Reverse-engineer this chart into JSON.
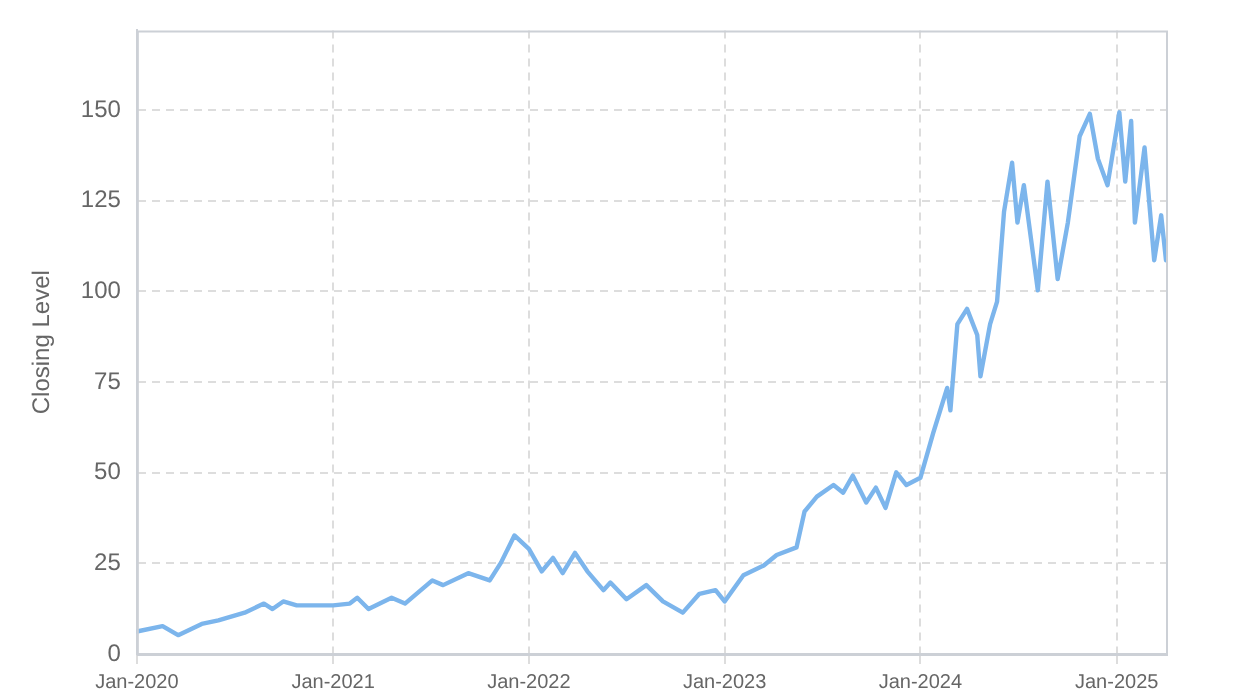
{
  "chart_data": {
    "type": "line",
    "ylabel": "Closing Level",
    "x": [
      "2020-01-01",
      "2020-02-18",
      "2020-03-18",
      "2020-05-01",
      "2020-06-01",
      "2020-07-20",
      "2020-08-25",
      "2020-09-10",
      "2020-09-30",
      "2020-10-25",
      "2021-01-01",
      "2021-02-01",
      "2021-02-15",
      "2021-03-08",
      "2021-04-20",
      "2021-05-15",
      "2021-07-05",
      "2021-07-25",
      "2021-09-10",
      "2021-10-20",
      "2021-11-10",
      "2021-12-05",
      "2022-01-01",
      "2022-01-25",
      "2022-02-15",
      "2022-03-05",
      "2022-03-28",
      "2022-04-20",
      "2022-05-20",
      "2022-06-02",
      "2022-07-02",
      "2022-08-08",
      "2022-09-08",
      "2022-10-15",
      "2022-11-15",
      "2022-12-15",
      "2023-01-01",
      "2023-02-05",
      "2023-03-15",
      "2023-04-08",
      "2023-05-15",
      "2023-05-30",
      "2023-06-22",
      "2023-07-23",
      "2023-08-10",
      "2023-08-28",
      "2023-09-22",
      "2023-10-10",
      "2023-10-28",
      "2023-11-17",
      "2023-12-06",
      "2024-01-01",
      "2024-01-25",
      "2024-02-20",
      "2024-02-26",
      "2024-03-10",
      "2024-03-28",
      "2024-04-16",
      "2024-04-22",
      "2024-05-10",
      "2024-05-23",
      "2024-06-05",
      "2024-06-20",
      "2024-06-30",
      "2024-07-12",
      "2024-08-07",
      "2024-08-25",
      "2024-09-13",
      "2024-10-02",
      "2024-10-24",
      "2024-11-12",
      "2024-11-27",
      "2024-12-15",
      "2025-01-06",
      "2025-01-17",
      "2025-01-28",
      "2025-02-04",
      "2025-02-22",
      "2025-03-12",
      "2025-03-25",
      "2025-04-03"
    ],
    "series": [
      {
        "color": "#7cb5ec",
        "values": [
          6.2,
          7.7,
          5.2,
          8.3,
          9.3,
          11.4,
          13.9,
          12.4,
          14.5,
          13.4,
          13.4,
          13.9,
          15.5,
          12.4,
          15.5,
          13.9,
          20.3,
          19,
          22.3,
          20.3,
          25.2,
          32.7,
          29,
          22.8,
          26.5,
          22.3,
          27.9,
          22.8,
          17.6,
          19.7,
          15.1,
          19,
          14.5,
          11.4,
          16.6,
          17.6,
          14.5,
          21.7,
          24.4,
          27.3,
          29.4,
          39.3,
          43.4,
          46.6,
          44.5,
          49.2,
          41.8,
          45.9,
          40.3,
          50.1,
          46.6,
          48.6,
          61,
          73.4,
          67.2,
          91,
          95.2,
          88,
          76.6,
          91,
          97.2,
          122,
          135.5,
          119,
          129.3,
          100.3,
          130.3,
          103.4,
          119,
          142.8,
          149,
          136.6,
          129.3,
          149.4,
          130.3,
          147,
          119,
          139.7,
          108.6,
          121,
          108.6
        ]
      }
    ],
    "xlim": [
      "2020-01-01",
      "2025-04-03"
    ],
    "xticks": [
      {
        "value": "2020-01-01",
        "label": "Jan-2020"
      },
      {
        "value": "2021-01-01",
        "label": "Jan-2021"
      },
      {
        "value": "2022-01-01",
        "label": "Jan-2022"
      },
      {
        "value": "2023-01-01",
        "label": "Jan-2023"
      },
      {
        "value": "2024-01-01",
        "label": "Jan-2024"
      },
      {
        "value": "2025-01-01",
        "label": "Jan-2025"
      }
    ],
    "ylim": [
      0,
      172
    ],
    "yticks": [
      0,
      25,
      50,
      75,
      100,
      125,
      150
    ],
    "grid": true,
    "legend": false,
    "marker": "none",
    "line_style": "solid"
  }
}
